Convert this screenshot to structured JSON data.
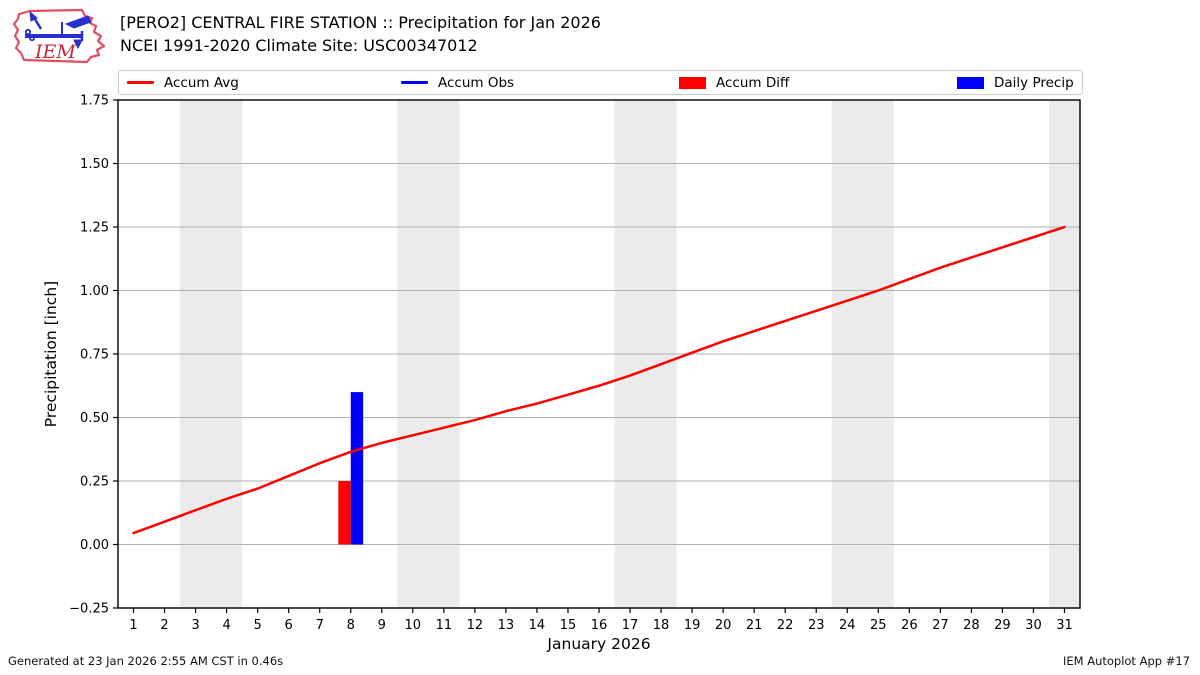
{
  "header": {
    "title": "[PERO2] CENTRAL FIRE STATION :: Precipitation for Jan 2026",
    "subtitle": "NCEI 1991-2020 Climate Site: USC00347012",
    "logo_text": "IEM"
  },
  "legend": {
    "items": [
      {
        "label": "Accum Avg",
        "swatch": "line",
        "color": "#ff0000"
      },
      {
        "label": "Accum Obs",
        "swatch": "line",
        "color": "#0000ff"
      },
      {
        "label": "Accum Diff",
        "swatch": "rect",
        "color": "#ff0000"
      },
      {
        "label": "Daily Precip",
        "swatch": "rect",
        "color": "#0000ff"
      }
    ]
  },
  "footer": {
    "left": "Generated at 23 Jan 2026 2:55 AM CST in 0.46s",
    "right": "IEM Autoplot App #17"
  },
  "colors": {
    "red": "#ff0000",
    "blue": "#0000ff",
    "grid": "#b0b0b0",
    "band": "#ebebeb",
    "spine": "#000000",
    "logo_outline": "#e04f5e",
    "logo_vane": "#2a2ecc",
    "logo_text": "#c22936"
  },
  "chart_data": {
    "type": "line+bar",
    "title": "[PERO2] CENTRAL FIRE STATION :: Precipitation for Jan 2026",
    "subtitle": "NCEI 1991-2020 Climate Site: USC00347012",
    "xlabel": "January 2026",
    "ylabel": "Precipitation [inch]",
    "xlim": [
      0.5,
      31.5
    ],
    "ylim": [
      -0.25,
      1.75
    ],
    "grid": "y",
    "legend_position": "top",
    "xticks": [
      1,
      2,
      3,
      4,
      5,
      6,
      7,
      8,
      9,
      10,
      11,
      12,
      13,
      14,
      15,
      16,
      17,
      18,
      19,
      20,
      21,
      22,
      23,
      24,
      25,
      26,
      27,
      28,
      29,
      30,
      31
    ],
    "yticks": [
      -0.25,
      0.0,
      0.25,
      0.5,
      0.75,
      1.0,
      1.25,
      1.5,
      1.75
    ],
    "ytick_labels": [
      "−0.25",
      "0.00",
      "0.25",
      "0.50",
      "0.75",
      "1.00",
      "1.25",
      "1.50",
      "1.75"
    ],
    "weekend_bands": [
      [
        2.5,
        4.5
      ],
      [
        9.5,
        11.5
      ],
      [
        16.5,
        18.5
      ],
      [
        23.5,
        25.5
      ],
      [
        30.5,
        31.5
      ]
    ],
    "series": [
      {
        "name": "Accum Avg",
        "type": "line",
        "color": "#ff0000",
        "x": [
          1,
          2,
          3,
          4,
          5,
          6,
          7,
          8,
          9,
          10,
          11,
          12,
          13,
          14,
          15,
          16,
          17,
          18,
          19,
          20,
          21,
          22,
          23,
          24,
          25,
          26,
          27,
          28,
          29,
          30,
          31
        ],
        "values": [
          0.045,
          0.09,
          0.135,
          0.18,
          0.22,
          0.27,
          0.32,
          0.365,
          0.4,
          0.43,
          0.46,
          0.49,
          0.525,
          0.555,
          0.59,
          0.625,
          0.665,
          0.71,
          0.755,
          0.8,
          0.84,
          0.88,
          0.92,
          0.96,
          1.0,
          1.045,
          1.09,
          1.13,
          1.17,
          1.21,
          1.25
        ]
      },
      {
        "name": "Accum Obs",
        "type": "line",
        "color": "#0000ff",
        "x": [
          8
        ],
        "values": [
          0.6
        ]
      }
    ],
    "bars": [
      {
        "name": "Accum Diff",
        "color": "#ff0000",
        "day": 8,
        "offset": -0.2,
        "width": 0.4,
        "value": 0.25
      },
      {
        "name": "Daily Precip",
        "color": "#0000ff",
        "day": 8,
        "offset": 0.2,
        "width": 0.4,
        "value": 0.6
      }
    ]
  }
}
